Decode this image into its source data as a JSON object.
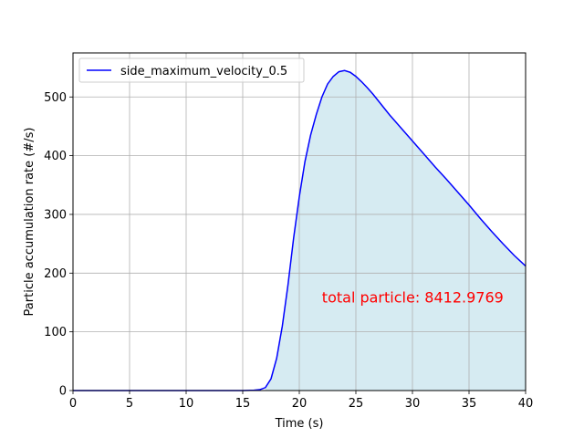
{
  "chart_data": {
    "type": "area",
    "xlabel": "Time (s)",
    "ylabel": "Particle accumulation rate (#/s)",
    "xlim": [
      0,
      40
    ],
    "ylim": [
      0,
      575
    ],
    "xticks": [
      0,
      5,
      10,
      15,
      20,
      25,
      30,
      35,
      40
    ],
    "yticks": [
      0,
      100,
      200,
      300,
      400,
      500
    ],
    "grid": true,
    "legend_position": "top-left",
    "series": [
      {
        "name": "side_maximum_velocity_0.5",
        "color": "#0000ff",
        "fill_color": "#add8e6",
        "fill_from_x": 17,
        "x": [
          0,
          5,
          10,
          15,
          16,
          16.5,
          17,
          17.5,
          18,
          18.5,
          19,
          19.5,
          20,
          20.5,
          21,
          21.5,
          22,
          22.5,
          23,
          23.5,
          24,
          24.5,
          25,
          25.5,
          26,
          26.5,
          27,
          27.5,
          28,
          29,
          30,
          31,
          32,
          33,
          34,
          35,
          36,
          37,
          38,
          39,
          40
        ],
        "y": [
          0,
          0,
          0,
          0,
          0.5,
          1.5,
          5,
          20,
          55,
          110,
          180,
          260,
          330,
          390,
          435,
          470,
          500,
          522,
          535,
          543,
          545,
          542,
          535,
          526,
          516,
          505,
          493,
          481,
          469,
          447,
          425,
          403,
          381,
          360,
          338,
          316,
          293,
          271,
          250,
          230,
          212
        ]
      }
    ],
    "annotation": {
      "text": "total particle: 8412.9769",
      "color": "#ff0000",
      "x": 22,
      "y": 150
    }
  }
}
